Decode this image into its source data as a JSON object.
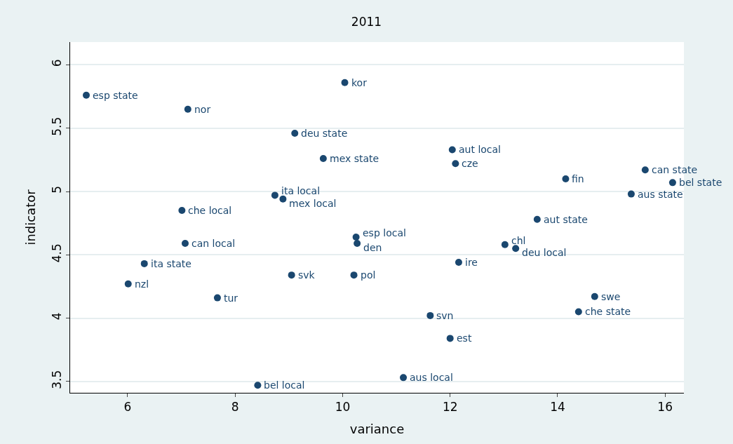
{
  "chart_data": {
    "type": "scatter",
    "title": "2011",
    "xlabel": "variance",
    "ylabel": "indicator",
    "x": [
      5.23,
      7.12,
      10.04,
      9.11,
      9.64,
      12.04,
      12.1,
      14.15,
      15.63,
      16.14,
      15.37,
      8.74,
      8.89,
      7.01,
      13.62,
      10.25,
      10.27,
      7.07,
      13.02,
      13.22,
      6.31,
      12.16,
      9.05,
      10.21,
      6.01,
      7.67,
      14.69,
      14.39,
      11.63,
      12.0,
      11.13,
      8.42
    ],
    "values": [
      5.76,
      5.65,
      5.86,
      5.46,
      5.26,
      5.33,
      5.22,
      5.1,
      5.17,
      5.07,
      4.98,
      4.97,
      4.94,
      4.85,
      4.78,
      4.64,
      4.59,
      4.59,
      4.58,
      4.55,
      4.43,
      4.44,
      4.34,
      4.34,
      4.27,
      4.16,
      4.17,
      4.05,
      4.02,
      3.84,
      3.53,
      3.47
    ],
    "annotations": [
      {
        "text": "esp state",
        "x": 5.23,
        "y": 5.76
      },
      {
        "text": "nor",
        "x": 7.12,
        "y": 5.65
      },
      {
        "text": "kor",
        "x": 10.04,
        "y": 5.86
      },
      {
        "text": "deu state",
        "x": 9.11,
        "y": 5.46
      },
      {
        "text": "mex state",
        "x": 9.64,
        "y": 5.26
      },
      {
        "text": "aut local",
        "x": 12.04,
        "y": 5.33
      },
      {
        "text": "cze",
        "x": 12.1,
        "y": 5.22
      },
      {
        "text": "fin",
        "x": 14.15,
        "y": 5.1
      },
      {
        "text": "can state",
        "x": 15.63,
        "y": 5.17
      },
      {
        "text": "bel state",
        "x": 16.14,
        "y": 5.07
      },
      {
        "text": "aus state",
        "x": 15.37,
        "y": 4.98
      },
      {
        "text": "ita local",
        "x": 8.74,
        "y": 4.97
      },
      {
        "text": "mex local",
        "x": 8.89,
        "y": 4.94
      },
      {
        "text": "che local",
        "x": 7.01,
        "y": 4.85
      },
      {
        "text": "aut state",
        "x": 13.62,
        "y": 4.78
      },
      {
        "text": "esp local",
        "x": 10.25,
        "y": 4.64
      },
      {
        "text": "den",
        "x": 10.27,
        "y": 4.59
      },
      {
        "text": "can local",
        "x": 7.07,
        "y": 4.59
      },
      {
        "text": "chl",
        "x": 13.02,
        "y": 4.58
      },
      {
        "text": "deu local",
        "x": 13.22,
        "y": 4.55
      },
      {
        "text": "ita state",
        "x": 6.31,
        "y": 4.43
      },
      {
        "text": "ire",
        "x": 12.16,
        "y": 4.44
      },
      {
        "text": "svk",
        "x": 9.05,
        "y": 4.34
      },
      {
        "text": "pol",
        "x": 10.21,
        "y": 4.34
      },
      {
        "text": "nzl",
        "x": 6.01,
        "y": 4.27
      },
      {
        "text": "tur",
        "x": 7.67,
        "y": 4.16
      },
      {
        "text": "swe",
        "x": 14.69,
        "y": 4.17
      },
      {
        "text": "che state",
        "x": 14.39,
        "y": 4.05
      },
      {
        "text": "svn",
        "x": 11.63,
        "y": 4.02
      },
      {
        "text": "est",
        "x": 12.0,
        "y": 3.84
      },
      {
        "text": "aus local",
        "x": 11.13,
        "y": 3.53
      },
      {
        "text": "bel local",
        "x": 8.42,
        "y": 3.47
      }
    ],
    "color": "#1a476f",
    "marker": "circle",
    "grid": "y",
    "legend": false,
    "xlim": [
      4.93,
      16.35
    ],
    "xticks": [
      6,
      8,
      10,
      12,
      14,
      16
    ],
    "ylim": [
      3.41,
      6.18
    ],
    "yticks": [
      3.5,
      4,
      4.5,
      5,
      5.5,
      6
    ]
  }
}
